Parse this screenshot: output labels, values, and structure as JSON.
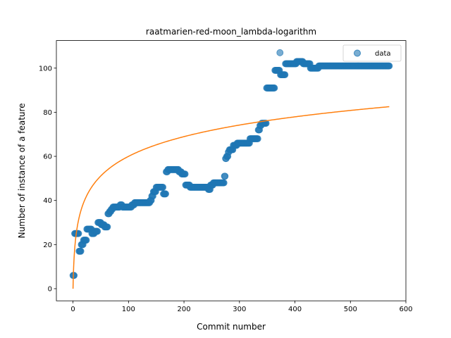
{
  "chart_data": {
    "type": "scatter",
    "title": "raatmarien-red-moon_lambda-logarithm",
    "xlabel": "Commit number",
    "ylabel": "Number of instance of a feature",
    "xlim": [
      -30,
      600
    ],
    "ylim": [
      -5.5,
      112.5
    ],
    "xticks": [
      0,
      100,
      200,
      300,
      400,
      500,
      600
    ],
    "yticks": [
      0,
      20,
      40,
      60,
      80,
      100
    ],
    "grid": false,
    "legend": {
      "position": "top-right",
      "entries": [
        "data"
      ]
    },
    "colors": {
      "data": "#1f77b4",
      "fit": "#ff7f0e"
    },
    "series": [
      {
        "name": "data",
        "kind": "scatter",
        "segments": [
          [
            0,
            2,
            6
          ],
          [
            3,
            10,
            25
          ],
          [
            11,
            14,
            17
          ],
          [
            15,
            18,
            20
          ],
          [
            19,
            24,
            22
          ],
          [
            25,
            33,
            27
          ],
          [
            34,
            38,
            25
          ],
          [
            39,
            44,
            26
          ],
          [
            45,
            50,
            30
          ],
          [
            51,
            56,
            29
          ],
          [
            57,
            62,
            28
          ],
          [
            63,
            65,
            34
          ],
          [
            66,
            68,
            35
          ],
          [
            69,
            71,
            36
          ],
          [
            72,
            84,
            37
          ],
          [
            85,
            88,
            38
          ],
          [
            89,
            105,
            37
          ],
          [
            106,
            110,
            38
          ],
          [
            111,
            138,
            39
          ],
          [
            139,
            141,
            40
          ],
          [
            142,
            144,
            42
          ],
          [
            145,
            149,
            44
          ],
          [
            150,
            162,
            46
          ],
          [
            163,
            167,
            43
          ],
          [
            168,
            170,
            53
          ],
          [
            171,
            190,
            54
          ],
          [
            191,
            195,
            53
          ],
          [
            196,
            202,
            52
          ],
          [
            203,
            210,
            47
          ],
          [
            211,
            243,
            46
          ],
          [
            244,
            247,
            45
          ],
          [
            248,
            252,
            47
          ],
          [
            253,
            272,
            48
          ],
          [
            273,
            274,
            51
          ],
          [
            275,
            276,
            59
          ],
          [
            277,
            279,
            60
          ],
          [
            280,
            281,
            62
          ],
          [
            282,
            288,
            63
          ],
          [
            289,
            295,
            65
          ],
          [
            296,
            318,
            66
          ],
          [
            319,
            333,
            68
          ],
          [
            334,
            336,
            72
          ],
          [
            337,
            339,
            74
          ],
          [
            340,
            348,
            75
          ],
          [
            349,
            363,
            91
          ],
          [
            364,
            372,
            99
          ],
          [
            373,
            373,
            107
          ],
          [
            374,
            382,
            97
          ],
          [
            383,
            384,
            102
          ],
          [
            385,
            402,
            102
          ],
          [
            403,
            414,
            103
          ],
          [
            415,
            427,
            102
          ],
          [
            428,
            442,
            100
          ],
          [
            443,
            570,
            101
          ]
        ]
      },
      {
        "name": "",
        "kind": "line",
        "function": "y = 13.0 * ln(x + 1)",
        "x_range": [
          0,
          570
        ]
      }
    ]
  }
}
